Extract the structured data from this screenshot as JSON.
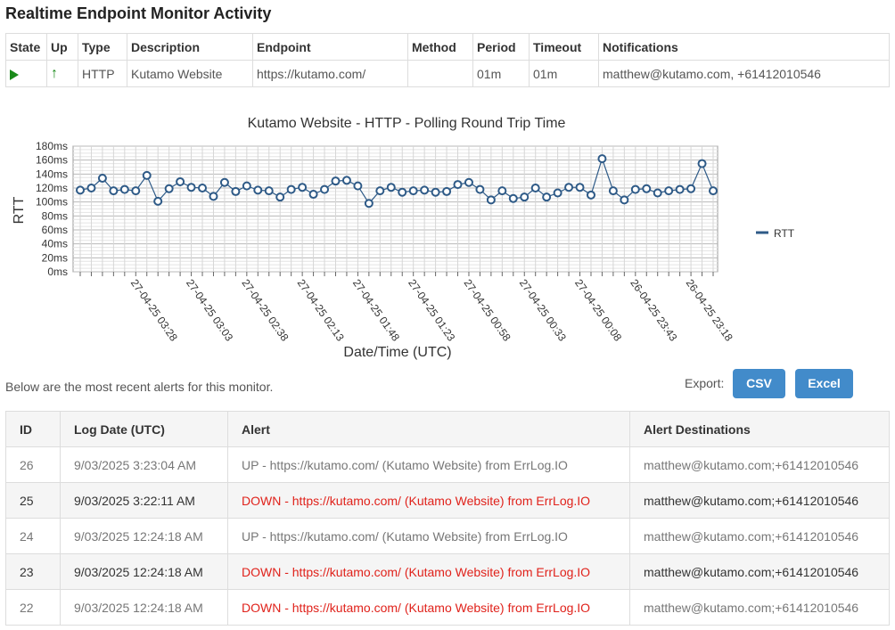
{
  "page": {
    "title": "Realtime Endpoint Monitor Activity"
  },
  "monitor": {
    "headers": [
      "State",
      "Up",
      "Type",
      "Description",
      "Endpoint",
      "Method",
      "Period",
      "Timeout",
      "Notifications"
    ],
    "row": {
      "state_icon": "play-icon",
      "up_icon": "arrow-up-icon",
      "type": "HTTP",
      "description": "Kutamo Website",
      "endpoint": "https://kutamo.com/",
      "method": "",
      "period": "01m",
      "timeout": "01m",
      "notifications": "matthew@kutamo.com, +61412010546"
    },
    "status_color": "#1a8a1a"
  },
  "chart_data": {
    "type": "line",
    "title": "Kutamo Website - HTTP - Polling Round Trip Time",
    "xlabel": "Date/Time (UTC)",
    "ylabel": "RTT",
    "ylim": [
      0,
      180
    ],
    "yticks": [
      "0ms",
      "20ms",
      "40ms",
      "60ms",
      "80ms",
      "100ms",
      "120ms",
      "140ms",
      "160ms",
      "180ms"
    ],
    "x_tick_labels": [
      "27-04-25 03:28",
      "27-04-25 03:03",
      "27-04-25 02:38",
      "27-04-25 02:13",
      "27-04-25 01:48",
      "27-04-25 01:23",
      "27-04-25 00:58",
      "27-04-25 00:33",
      "27-04-25 00:08",
      "26-04-25 23:43",
      "26-04-25 23:18"
    ],
    "legend_position": "right",
    "grid": true,
    "series": [
      {
        "name": "RTT",
        "color": "#2e5a87",
        "values": [
          117,
          120,
          134,
          116,
          118,
          116,
          138,
          101,
          119,
          129,
          121,
          120,
          108,
          128,
          115,
          123,
          117,
          116,
          107,
          118,
          121,
          111,
          118,
          130,
          131,
          123,
          98,
          116,
          121,
          114,
          116,
          117,
          114,
          115,
          125,
          128,
          118,
          103,
          116,
          105,
          107,
          120,
          107,
          113,
          121,
          121,
          110,
          162,
          116,
          103,
          118,
          119,
          113,
          116,
          118,
          119,
          155,
          116
        ]
      }
    ]
  },
  "export": {
    "label": "Export:",
    "csv_label": "CSV",
    "excel_label": "Excel",
    "button_color": "#428bca"
  },
  "alerts": {
    "caption": "Below are the most recent alerts for this monitor.",
    "headers": [
      "ID",
      "Log Date (UTC)",
      "Alert",
      "Alert Destinations"
    ],
    "rows": [
      {
        "id": "26",
        "date": "9/03/2025 3:23:04 AM",
        "alert": "UP - https://kutamo.com/ (Kutamo Website) from ErrLog.IO",
        "destinations": "matthew@kutamo.com;+61412010546",
        "status": "up"
      },
      {
        "id": "25",
        "date": "9/03/2025 3:22:11 AM",
        "alert": "DOWN - https://kutamo.com/ (Kutamo Website) from ErrLog.IO",
        "destinations": "matthew@kutamo.com;+61412010546",
        "status": "down"
      },
      {
        "id": "24",
        "date": "9/03/2025 12:24:18 AM",
        "alert": "UP - https://kutamo.com/ (Kutamo Website) from ErrLog.IO",
        "destinations": "matthew@kutamo.com;+61412010546",
        "status": "up"
      },
      {
        "id": "23",
        "date": "9/03/2025 12:24:18 AM",
        "alert": "DOWN - https://kutamo.com/ (Kutamo Website) from ErrLog.IO",
        "destinations": "matthew@kutamo.com;+61412010546",
        "status": "down"
      },
      {
        "id": "22",
        "date": "9/03/2025 12:24:18 AM",
        "alert": "DOWN - https://kutamo.com/ (Kutamo Website) from ErrLog.IO",
        "destinations": "matthew@kutamo.com;+61412010546",
        "status": "down"
      }
    ],
    "down_color": "#e0221b"
  }
}
